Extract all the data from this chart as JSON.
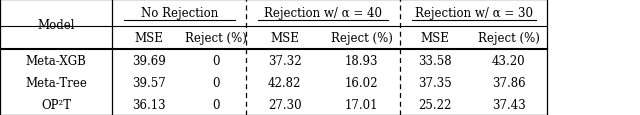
{
  "col_groups": [
    "No Rejection",
    "Rejection w/ α = 40",
    "Rejection w/ α = 30"
  ],
  "col_headers": [
    "MSE",
    "Reject (%)",
    "MSE",
    "Reject (%)",
    "MSE",
    "Reject (%)"
  ],
  "row_labels": [
    "Meta-XGB",
    "Meta-Tree",
    "OP²T"
  ],
  "data": [
    [
      "39.69",
      "0",
      "37.32",
      "18.93",
      "33.58",
      "43.20"
    ],
    [
      "39.57",
      "0",
      "42.82",
      "16.02",
      "37.35",
      "37.86"
    ],
    [
      "36.13",
      "0",
      "27.30",
      "17.01",
      "25.22",
      "37.43"
    ]
  ],
  "bg_color": "#ffffff",
  "text_color": "#000000",
  "font_size": 8.5
}
